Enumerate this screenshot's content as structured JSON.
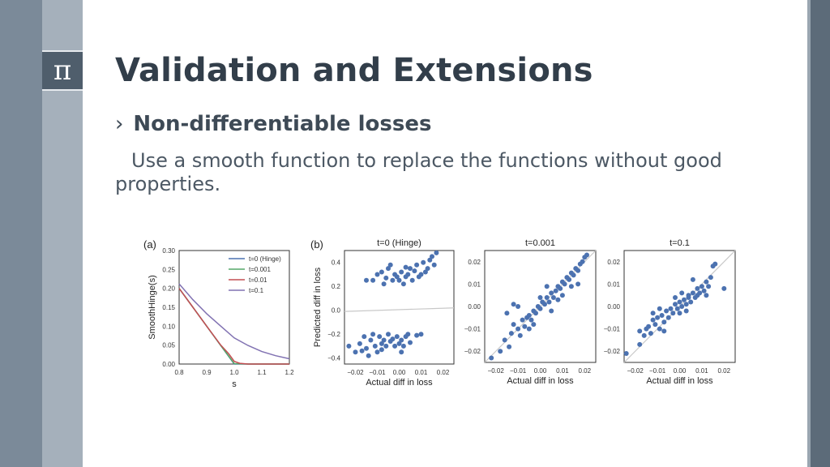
{
  "slide": {
    "title": "Validation and Extensions",
    "logo_glyph": "π",
    "bullet_marker": "›",
    "bullet": "Non-differentiable losses",
    "body": "Use a smooth function to replace the functions without good properties."
  },
  "colors": {
    "title": "#323e4a",
    "sidebar": "#7b8a99",
    "points": "#4c72b0"
  },
  "chart_data": [
    {
      "type": "line",
      "panel_label": "(a)",
      "xlabel": "s",
      "ylabel": "SmoothHinge(s)",
      "xlim": [
        0.8,
        1.2
      ],
      "ylim": [
        0.0,
        0.3
      ],
      "xticks": [
        "0.8",
        "0.9",
        "1.0",
        "1.1",
        "1.2"
      ],
      "yticks": [
        "0.00",
        "0.05",
        "0.10",
        "0.15",
        "0.20",
        "0.25",
        "0.30"
      ],
      "grid": false,
      "legend_position": "top-right",
      "series": [
        {
          "name": "t=0 (Hinge)",
          "color": "#4c72b0",
          "x": [
            0.8,
            0.85,
            0.9,
            0.95,
            1.0,
            1.05,
            1.1,
            1.15,
            1.2
          ],
          "y": [
            0.2,
            0.15,
            0.1,
            0.05,
            0.0,
            0.0,
            0.0,
            0.0,
            0.0
          ]
        },
        {
          "name": "t=0.001",
          "color": "#55a868",
          "x": [
            0.8,
            0.85,
            0.9,
            0.95,
            1.0,
            1.05,
            1.1,
            1.15,
            1.2
          ],
          "y": [
            0.2,
            0.15,
            0.1,
            0.05,
            0.001,
            0.0,
            0.0,
            0.0,
            0.0
          ]
        },
        {
          "name": "t=0.01",
          "color": "#c44e52",
          "x": [
            0.8,
            0.85,
            0.9,
            0.95,
            0.98,
            1.0,
            1.02,
            1.05,
            1.1,
            1.2
          ],
          "y": [
            0.2,
            0.15,
            0.1,
            0.051,
            0.027,
            0.007,
            0.002,
            0.0,
            0.0,
            0.0
          ]
        },
        {
          "name": "t=0.1",
          "color": "#8172b2",
          "x": [
            0.8,
            0.85,
            0.9,
            0.95,
            1.0,
            1.05,
            1.1,
            1.15,
            1.2
          ],
          "y": [
            0.212,
            0.17,
            0.133,
            0.101,
            0.069,
            0.049,
            0.033,
            0.022,
            0.014
          ]
        }
      ]
    },
    {
      "type": "scatter",
      "panel_label": "(b)",
      "title": "t=0 (Hinge)",
      "xlabel": "Actual diff in loss",
      "ylabel": "Predicted diff in loss",
      "xlim": [
        -0.025,
        0.025
      ],
      "ylim": [
        -0.45,
        0.5
      ],
      "xticks": [
        "−0.02",
        "−0.01",
        "0.00",
        "0.01",
        "0.02"
      ],
      "yticks": [
        "−0.4",
        "−0.2",
        "0.0",
        "0.2",
        "0.4"
      ],
      "fit_line": [
        [
          -0.025,
          -0.01
        ],
        [
          0.025,
          0.02
        ]
      ],
      "points": [
        [
          -0.015,
          0.25
        ],
        [
          -0.012,
          0.25
        ],
        [
          -0.01,
          0.3
        ],
        [
          -0.008,
          0.32
        ],
        [
          -0.007,
          0.22
        ],
        [
          -0.005,
          0.35
        ],
        [
          -0.004,
          0.38
        ],
        [
          -0.003,
          0.25
        ],
        [
          -0.002,
          0.3
        ],
        [
          -0.001,
          0.28
        ],
        [
          0.0,
          0.25
        ],
        [
          0.001,
          0.32
        ],
        [
          0.002,
          0.22
        ],
        [
          0.003,
          0.28
        ],
        [
          0.004,
          0.3
        ],
        [
          0.005,
          0.35
        ],
        [
          0.006,
          0.25
        ],
        [
          0.007,
          0.33
        ],
        [
          0.008,
          0.38
        ],
        [
          0.009,
          0.28
        ],
        [
          0.01,
          0.3
        ],
        [
          0.011,
          0.4
        ],
        [
          0.012,
          0.32
        ],
        [
          0.013,
          0.35
        ],
        [
          0.014,
          0.42
        ],
        [
          0.015,
          0.45
        ],
        [
          0.016,
          0.38
        ],
        [
          0.017,
          0.48
        ],
        [
          -0.006,
          0.27
        ],
        [
          0.003,
          0.36
        ],
        [
          -0.023,
          -0.3
        ],
        [
          -0.02,
          -0.35
        ],
        [
          -0.018,
          -0.28
        ],
        [
          -0.016,
          -0.22
        ],
        [
          -0.015,
          -0.32
        ],
        [
          -0.014,
          -0.38
        ],
        [
          -0.013,
          -0.25
        ],
        [
          -0.012,
          -0.2
        ],
        [
          -0.011,
          -0.3
        ],
        [
          -0.01,
          -0.35
        ],
        [
          -0.009,
          -0.22
        ],
        [
          -0.008,
          -0.28
        ],
        [
          -0.007,
          -0.25
        ],
        [
          -0.006,
          -0.3
        ],
        [
          -0.005,
          -0.2
        ],
        [
          -0.004,
          -0.26
        ],
        [
          -0.003,
          -0.24
        ],
        [
          -0.002,
          -0.3
        ],
        [
          -0.001,
          -0.22
        ],
        [
          0.0,
          -0.28
        ],
        [
          0.001,
          -0.25
        ],
        [
          0.002,
          -0.3
        ],
        [
          0.003,
          -0.22
        ],
        [
          0.004,
          -0.2
        ],
        [
          0.005,
          -0.27
        ],
        [
          0.008,
          -0.21
        ],
        [
          0.01,
          -0.2
        ],
        [
          -0.017,
          -0.34
        ],
        [
          -0.008,
          -0.33
        ],
        [
          0.001,
          -0.35
        ]
      ]
    },
    {
      "type": "scatter",
      "title": "t=0.001",
      "xlabel": "Actual diff in loss",
      "ylabel": "",
      "xlim": [
        -0.025,
        0.025
      ],
      "ylim": [
        -0.025,
        0.025
      ],
      "xticks": [
        "−0.02",
        "−0.01",
        "0.00",
        "0.01",
        "0.02"
      ],
      "yticks": [
        "−0.02",
        "−0.01",
        "0.00",
        "0.01",
        "0.02"
      ],
      "fit_line": [
        [
          -0.025,
          -0.025
        ],
        [
          0.025,
          0.025
        ]
      ],
      "points": [
        [
          -0.022,
          -0.023
        ],
        [
          -0.018,
          -0.02
        ],
        [
          -0.016,
          -0.015
        ],
        [
          -0.014,
          -0.018
        ],
        [
          -0.013,
          -0.012
        ],
        [
          -0.012,
          -0.008
        ],
        [
          -0.01,
          -0.01
        ],
        [
          -0.009,
          -0.013
        ],
        [
          -0.008,
          -0.006
        ],
        [
          -0.007,
          -0.009
        ],
        [
          -0.006,
          -0.005
        ],
        [
          -0.005,
          -0.004
        ],
        [
          -0.004,
          -0.006
        ],
        [
          -0.003,
          -0.002
        ],
        [
          -0.002,
          -0.003
        ],
        [
          -0.001,
          0.0
        ],
        [
          0.0,
          -0.001
        ],
        [
          0.001,
          0.002
        ],
        [
          0.002,
          0.001
        ],
        [
          0.003,
          0.004
        ],
        [
          0.004,
          0.002
        ],
        [
          0.005,
          0.006
        ],
        [
          0.006,
          0.004
        ],
        [
          0.007,
          0.007
        ],
        [
          0.008,
          0.009
        ],
        [
          0.009,
          0.008
        ],
        [
          0.01,
          0.011
        ],
        [
          0.011,
          0.01
        ],
        [
          0.012,
          0.013
        ],
        [
          0.013,
          0.012
        ],
        [
          0.014,
          0.015
        ],
        [
          0.015,
          0.014
        ],
        [
          0.016,
          0.017
        ],
        [
          0.017,
          0.016
        ],
        [
          0.018,
          0.019
        ],
        [
          0.019,
          0.02
        ],
        [
          0.02,
          0.022
        ],
        [
          0.021,
          0.023
        ],
        [
          -0.015,
          -0.003
        ],
        [
          -0.01,
          0.0
        ],
        [
          -0.005,
          -0.01
        ],
        [
          0.0,
          0.004
        ],
        [
          0.005,
          -0.002
        ],
        [
          0.01,
          0.005
        ],
        [
          0.017,
          0.01
        ],
        [
          -0.012,
          0.001
        ],
        [
          0.003,
          0.009
        ],
        [
          -0.003,
          -0.008
        ],
        [
          0.008,
          0.003
        ],
        [
          0.014,
          0.009
        ]
      ]
    },
    {
      "type": "scatter",
      "title": "t=0.1",
      "xlabel": "Actual diff in loss",
      "ylabel": "",
      "xlim": [
        -0.025,
        0.025
      ],
      "ylim": [
        -0.025,
        0.025
      ],
      "xticks": [
        "−0.02",
        "−0.01",
        "0.00",
        "0.01",
        "0.02"
      ],
      "yticks": [
        "−0.02",
        "−0.01",
        "0.00",
        "0.01",
        "0.02"
      ],
      "fit_line": [
        [
          -0.025,
          -0.025
        ],
        [
          0.025,
          0.025
        ]
      ],
      "points": [
        [
          -0.024,
          -0.021
        ],
        [
          -0.018,
          -0.011
        ],
        [
          -0.016,
          -0.013
        ],
        [
          -0.014,
          -0.009
        ],
        [
          -0.013,
          -0.012
        ],
        [
          -0.012,
          -0.006
        ],
        [
          -0.011,
          -0.008
        ],
        [
          -0.01,
          -0.005
        ],
        [
          -0.009,
          -0.01
        ],
        [
          -0.008,
          -0.004
        ],
        [
          -0.007,
          -0.007
        ],
        [
          -0.006,
          -0.002
        ],
        [
          -0.005,
          -0.005
        ],
        [
          -0.004,
          -0.001
        ],
        [
          -0.003,
          -0.003
        ],
        [
          -0.002,
          0.001
        ],
        [
          -0.001,
          -0.001
        ],
        [
          0.0,
          0.002
        ],
        [
          0.001,
          0.0
        ],
        [
          0.002,
          0.003
        ],
        [
          0.003,
          0.001
        ],
        [
          0.004,
          0.005
        ],
        [
          0.005,
          0.002
        ],
        [
          0.006,
          0.006
        ],
        [
          0.007,
          0.004
        ],
        [
          0.008,
          0.008
        ],
        [
          0.009,
          0.006
        ],
        [
          0.01,
          0.009
        ],
        [
          0.011,
          0.007
        ],
        [
          0.012,
          0.011
        ],
        [
          0.013,
          0.009
        ],
        [
          0.014,
          0.013
        ],
        [
          0.015,
          0.018
        ],
        [
          0.016,
          0.019
        ],
        [
          0.02,
          0.008
        ],
        [
          -0.015,
          -0.01
        ],
        [
          -0.007,
          -0.011
        ],
        [
          0.0,
          -0.003
        ],
        [
          0.004,
          0.004
        ],
        [
          0.008,
          0.005
        ],
        [
          -0.012,
          -0.003
        ],
        [
          -0.002,
          0.004
        ],
        [
          0.006,
          0.012
        ],
        [
          -0.018,
          -0.017
        ],
        [
          0.001,
          0.006
        ],
        [
          -0.009,
          -0.001
        ],
        [
          0.003,
          -0.002
        ],
        [
          0.012,
          0.005
        ]
      ]
    }
  ]
}
